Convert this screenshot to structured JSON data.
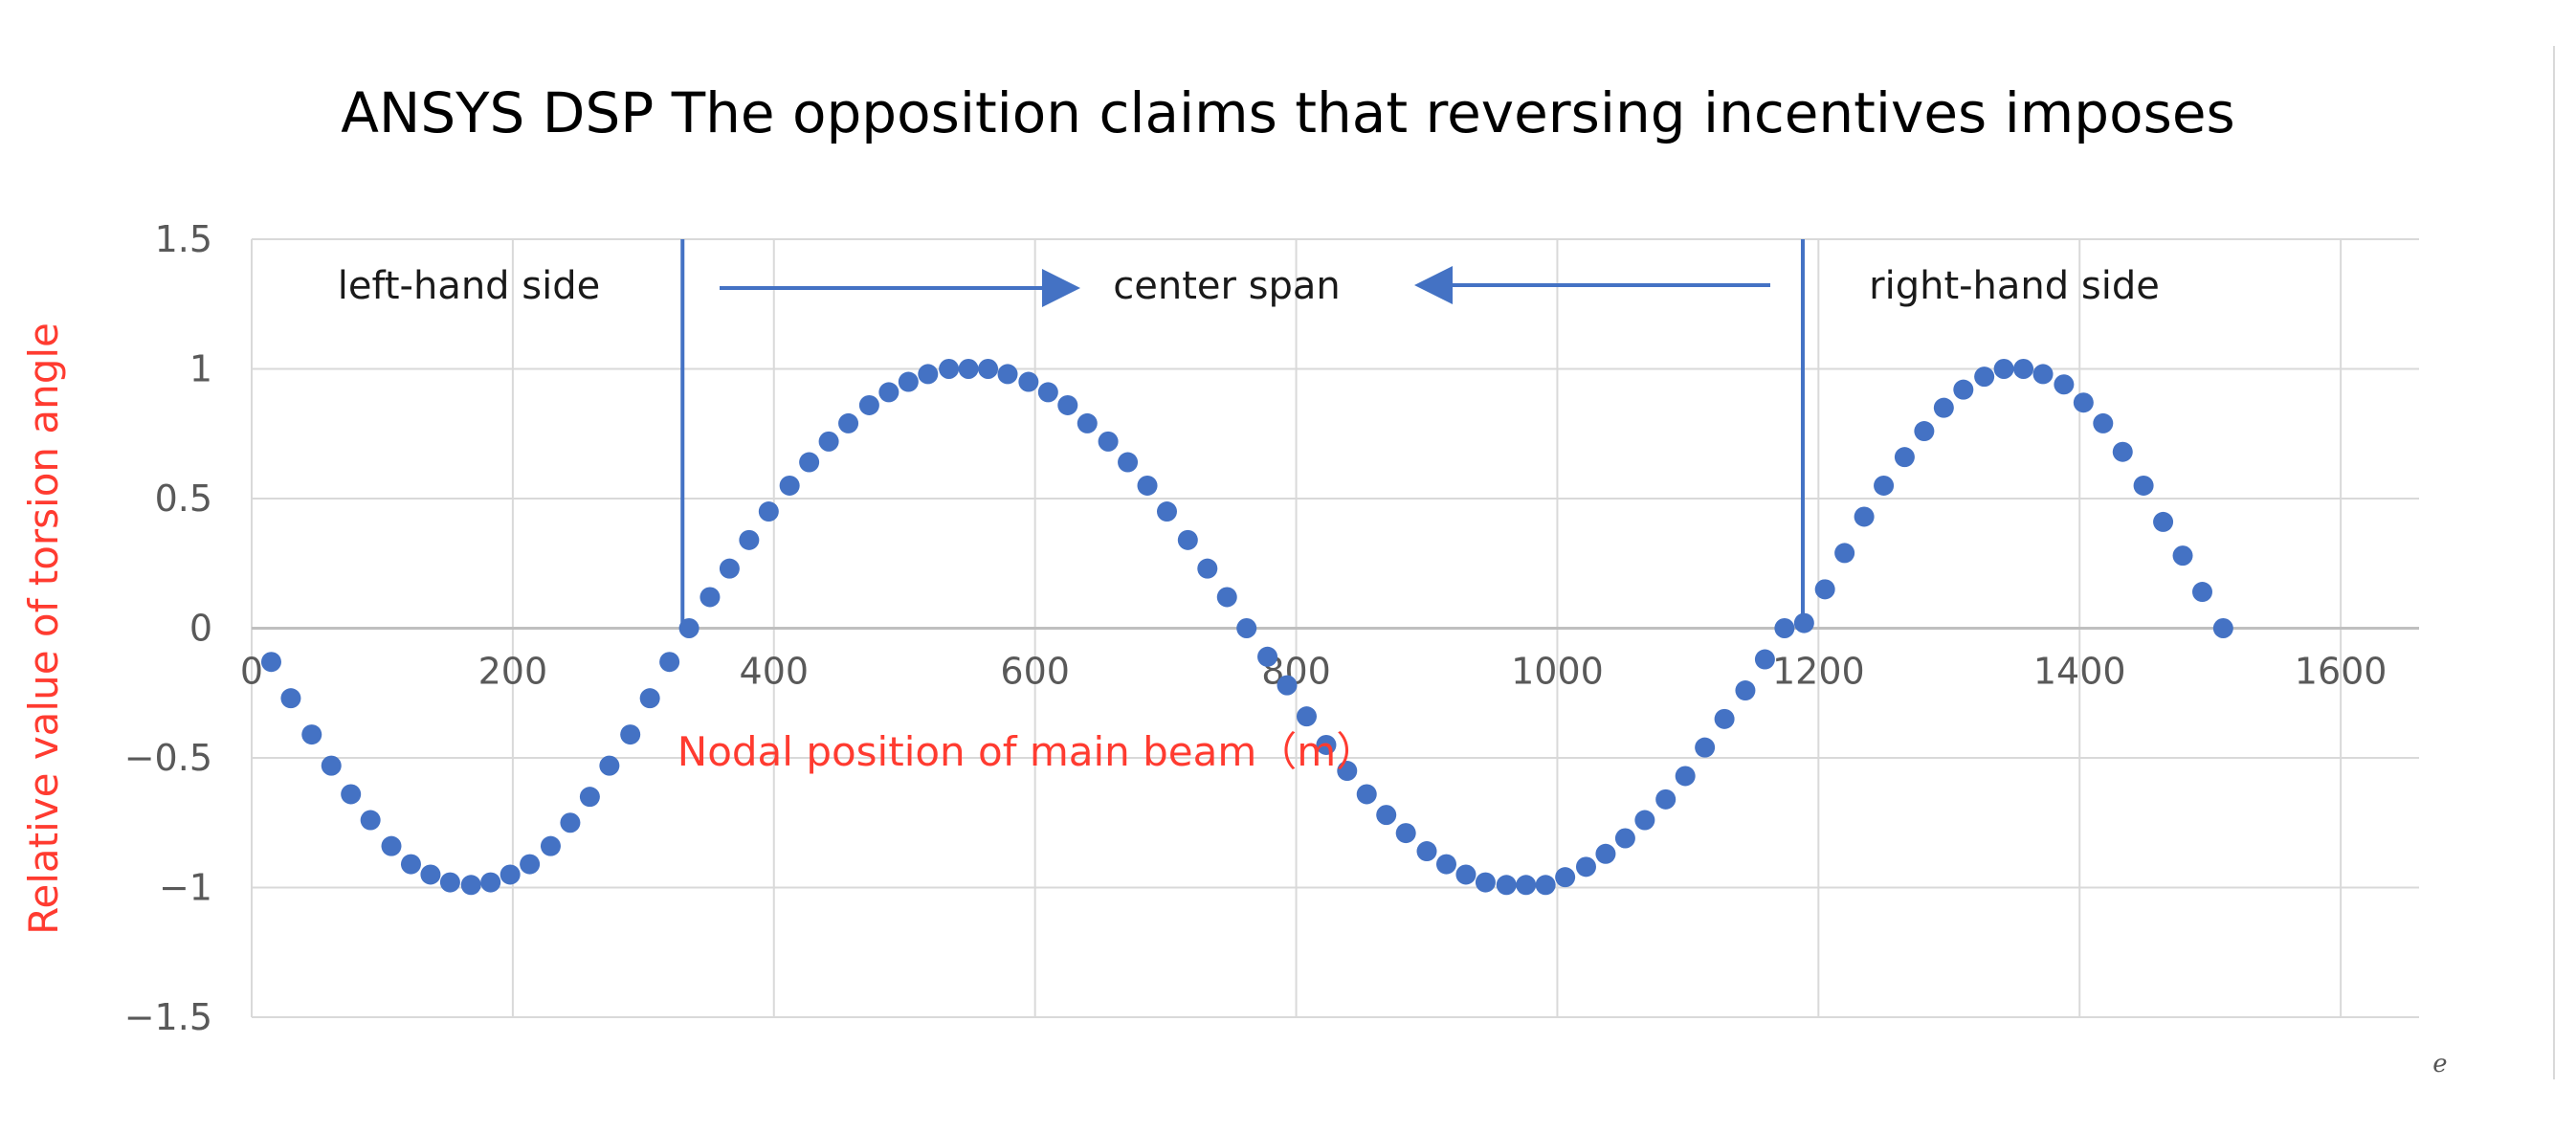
{
  "chart_data": {
    "type": "scatter",
    "title": "ANSYS DSP The opposition claims that reversing incentives imposes",
    "xlabel": "Nodal position of main beam（m）",
    "ylabel": "Relative value of torsion angle",
    "xlim": [
      0,
      1660
    ],
    "ylim": [
      -1.5,
      1.5
    ],
    "xticks": [
      0,
      200,
      400,
      600,
      800,
      1000,
      1200,
      1400,
      1600
    ],
    "yticks": [
      1.5,
      1,
      0.5,
      0,
      -0.5,
      -1,
      -1.5
    ],
    "ytick_labels": [
      "1.5",
      "1",
      "0.5",
      "0",
      "−0.5",
      "−1",
      "−1.5"
    ],
    "grid": true,
    "label_color": "#ff3b30",
    "marker_color": "#4472c4",
    "series": [
      {
        "points": [
          [
            15,
            -0.13
          ],
          [
            30,
            -0.27
          ],
          [
            46,
            -0.41
          ],
          [
            61,
            -0.53
          ],
          [
            76,
            -0.64
          ],
          [
            91,
            -0.74
          ],
          [
            107,
            -0.84
          ],
          [
            122,
            -0.91
          ],
          [
            137,
            -0.95
          ],
          [
            152,
            -0.98
          ],
          [
            168,
            -0.99
          ],
          [
            183,
            -0.98
          ],
          [
            198,
            -0.95
          ],
          [
            213,
            -0.91
          ],
          [
            229,
            -0.84
          ],
          [
            244,
            -0.75
          ],
          [
            259,
            -0.65
          ],
          [
            274,
            -0.53
          ],
          [
            290,
            -0.41
          ],
          [
            305,
            -0.27
          ],
          [
            320,
            -0.13
          ],
          [
            335,
            0.0
          ],
          [
            351,
            0.12
          ],
          [
            366,
            0.23
          ],
          [
            381,
            0.34
          ],
          [
            396,
            0.45
          ],
          [
            412,
            0.55
          ],
          [
            427,
            0.64
          ],
          [
            442,
            0.72
          ],
          [
            457,
            0.79
          ],
          [
            473,
            0.86
          ],
          [
            488,
            0.91
          ],
          [
            503,
            0.95
          ],
          [
            518,
            0.98
          ],
          [
            534,
            1.0
          ],
          [
            549,
            1.0
          ],
          [
            564,
            1.0
          ],
          [
            579,
            0.98
          ],
          [
            595,
            0.95
          ],
          [
            610,
            0.91
          ],
          [
            625,
            0.86
          ],
          [
            640,
            0.79
          ],
          [
            656,
            0.72
          ],
          [
            671,
            0.64
          ],
          [
            686,
            0.55
          ],
          [
            701,
            0.45
          ],
          [
            717,
            0.34
          ],
          [
            732,
            0.23
          ],
          [
            747,
            0.12
          ],
          [
            762,
            0.0
          ],
          [
            778,
            -0.11
          ],
          [
            793,
            -0.22
          ],
          [
            808,
            -0.34
          ],
          [
            823,
            -0.45
          ],
          [
            839,
            -0.55
          ],
          [
            854,
            -0.64
          ],
          [
            869,
            -0.72
          ],
          [
            884,
            -0.79
          ],
          [
            900,
            -0.86
          ],
          [
            915,
            -0.91
          ],
          [
            930,
            -0.95
          ],
          [
            945,
            -0.98
          ],
          [
            961,
            -0.99
          ],
          [
            976,
            -0.99
          ],
          [
            991,
            -0.99
          ],
          [
            1006,
            -0.96
          ],
          [
            1022,
            -0.92
          ],
          [
            1037,
            -0.87
          ],
          [
            1052,
            -0.81
          ],
          [
            1067,
            -0.74
          ],
          [
            1083,
            -0.66
          ],
          [
            1098,
            -0.57
          ],
          [
            1113,
            -0.46
          ],
          [
            1128,
            -0.35
          ],
          [
            1144,
            -0.24
          ],
          [
            1159,
            -0.12
          ],
          [
            1174,
            0.0
          ],
          [
            1189,
            0.02
          ],
          [
            1205,
            0.15
          ],
          [
            1220,
            0.29
          ],
          [
            1235,
            0.43
          ],
          [
            1250,
            0.55
          ],
          [
            1266,
            0.66
          ],
          [
            1281,
            0.76
          ],
          [
            1296,
            0.85
          ],
          [
            1311,
            0.92
          ],
          [
            1327,
            0.97
          ],
          [
            1342,
            1.0
          ],
          [
            1357,
            1.0
          ],
          [
            1372,
            0.98
          ],
          [
            1388,
            0.94
          ],
          [
            1403,
            0.87
          ],
          [
            1418,
            0.79
          ],
          [
            1433,
            0.68
          ],
          [
            1449,
            0.55
          ],
          [
            1464,
            0.41
          ],
          [
            1479,
            0.28
          ],
          [
            1494,
            0.14
          ],
          [
            1510,
            0.0
          ]
        ]
      }
    ],
    "region_labels": [
      "left-hand side",
      "center span",
      "right-hand side"
    ],
    "divider_x": [
      330,
      1188
    ],
    "corner_mark": "ℯ"
  }
}
